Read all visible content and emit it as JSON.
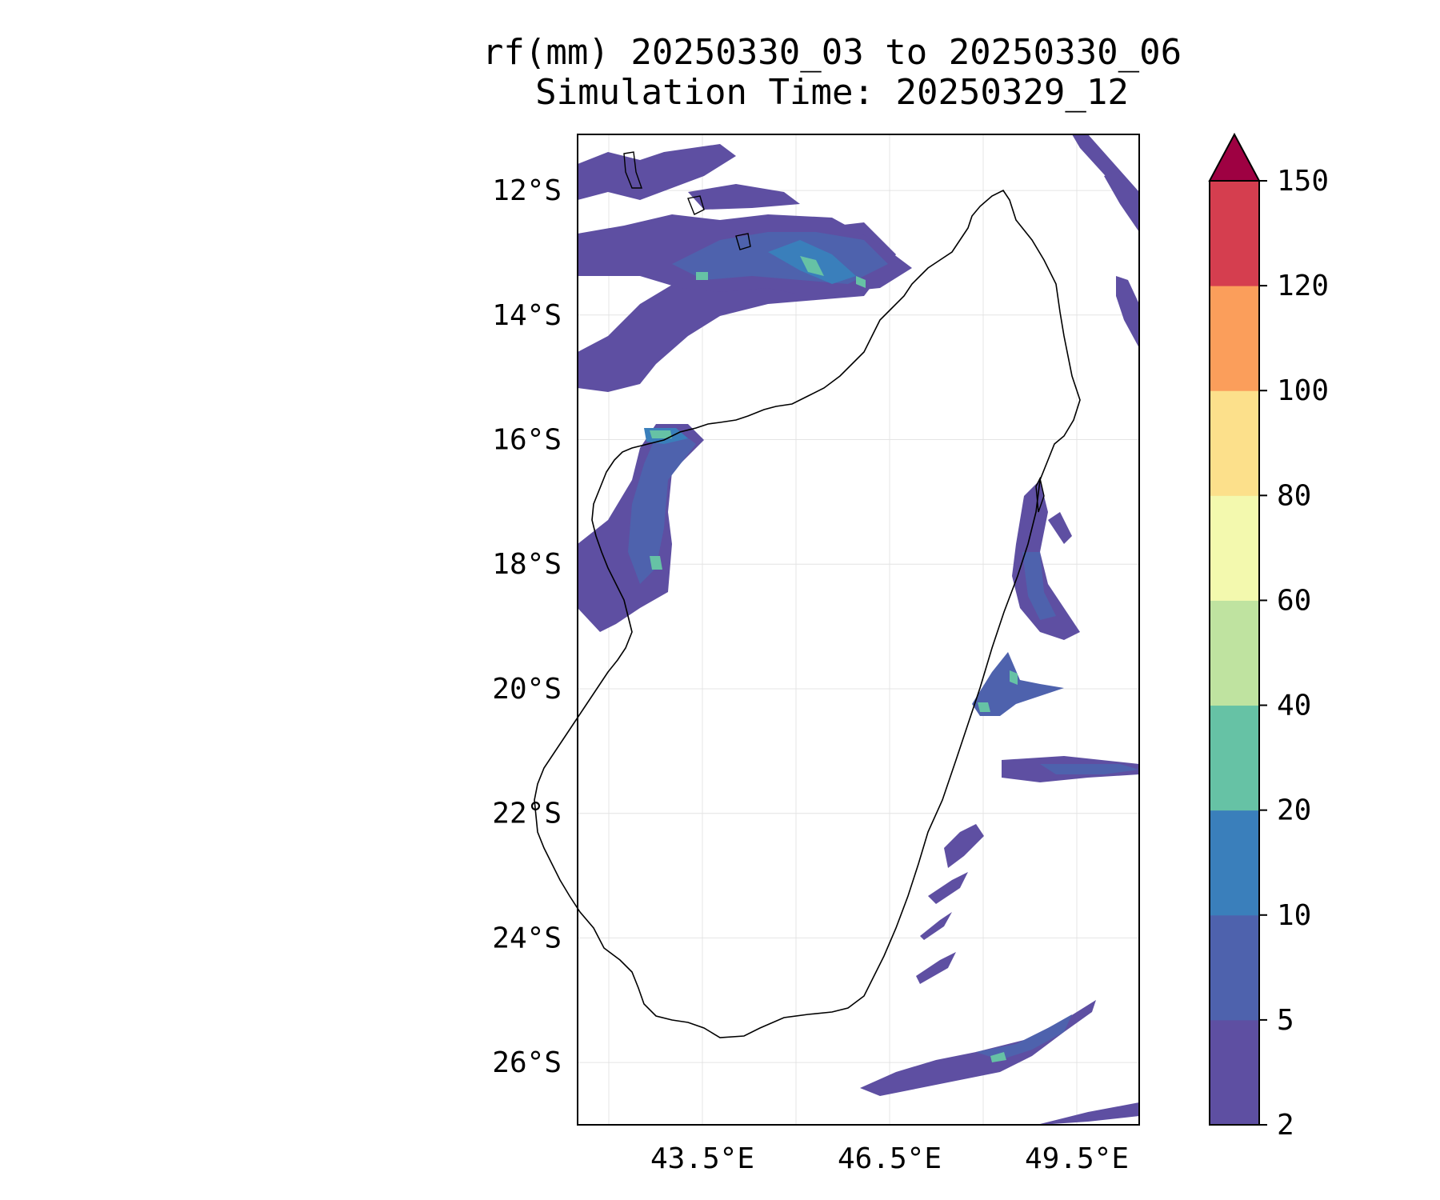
{
  "title": {
    "line1": "rf(mm) 20250330_03 to 20250330_06",
    "line2": "Simulation Time: 20250329_12"
  },
  "map": {
    "lon_range": [
      41.5,
      50.5
    ],
    "lat_range": [
      -27.0,
      -11.1
    ],
    "x_ticks": [
      "43.5°E",
      "46.5°E",
      "49.5°E"
    ],
    "x_tick_values": [
      43.5,
      46.5,
      49.5
    ],
    "y_ticks": [
      "12°S",
      "14°S",
      "16°S",
      "18°S",
      "20°S",
      "22°S",
      "24°S",
      "26°S"
    ],
    "y_tick_values": [
      -12,
      -14,
      -16,
      -18,
      -20,
      -22,
      -24,
      -26
    ],
    "grid": true,
    "coastline": "Madagascar",
    "field": "rainfall accumulation (mm)"
  },
  "colorbar": {
    "levels": [
      "2",
      "5",
      "10",
      "20",
      "40",
      "60",
      "80",
      "100",
      "120",
      "150"
    ],
    "colors": [
      "#5e4fa2",
      "#4e62ad",
      "#3a7fbb",
      "#66c2a5",
      "#bfe3a0",
      "#f3f9ae",
      "#fce08b",
      "#fb9e5b",
      "#d53e4f",
      "#9e0142"
    ],
    "extend": "max"
  },
  "chart_data": {
    "type": "heatmap",
    "title": "rf(mm) 20250330_03 to 20250330_06 / Simulation Time: 20250329_12",
    "xlabel": "",
    "ylabel": "",
    "xlim": [
      41.5,
      50.5
    ],
    "ylim": [
      -27.0,
      -11.1
    ],
    "colorbar_levels": [
      2,
      5,
      10,
      20,
      40,
      60,
      80,
      100,
      120,
      150
    ],
    "rain_regions": [
      {
        "region": "NW Mozambique Channel band (13–15°S, 42–47°E)",
        "max_class": "20-40"
      },
      {
        "region": "West coast band (15.5–19°S, 41.5–43.5°E)",
        "max_class": "20-40"
      },
      {
        "region": "East coast offshore (17–21°S, 48.5–50°E)",
        "max_class": "20-40"
      },
      {
        "region": "East offshore band (21.2°S, 49–50.5°E)",
        "max_class": "10-20"
      },
      {
        "region": "SE offshore streaks (22–25°S, 47.5–49.5°E)",
        "max_class": "5-10"
      },
      {
        "region": "South offshore band (25–26.5°S, 46.5–50°E)",
        "max_class": "20-40"
      },
      {
        "region": "NE offshore streaks (11–15°S, 49.5–50.5°E)",
        "max_class": "5-10"
      }
    ]
  }
}
